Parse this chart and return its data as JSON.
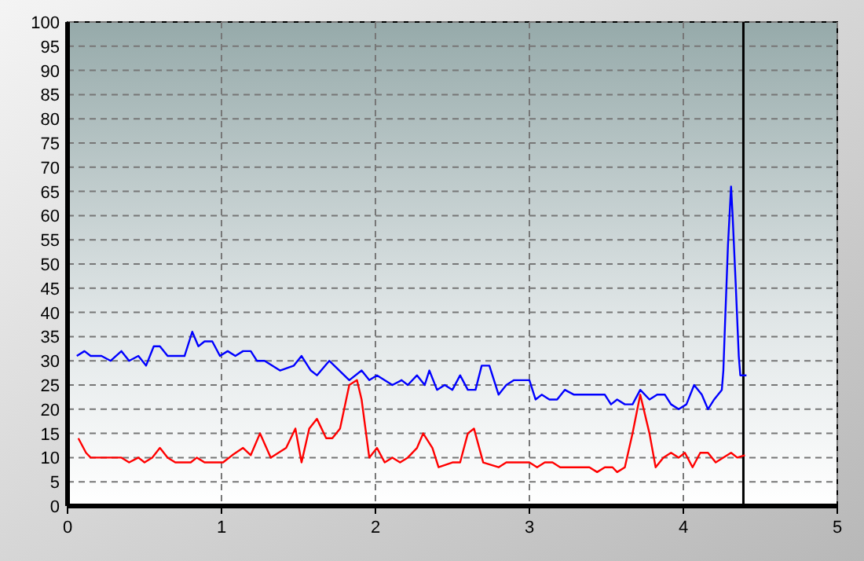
{
  "chart_data": {
    "type": "line",
    "xlim": [
      0,
      5
    ],
    "xticks": [
      0,
      1,
      2,
      3,
      4,
      5
    ],
    "ylim": [
      0,
      100
    ],
    "yticks": [
      0,
      5,
      10,
      15,
      20,
      25,
      30,
      35,
      40,
      45,
      50,
      55,
      60,
      65,
      70,
      75,
      80,
      85,
      90,
      95,
      100
    ],
    "grid": true,
    "marker": "none",
    "line_style": "solid",
    "ref_lines": [
      {
        "axis": "x",
        "value": 4.39,
        "color": "#000000"
      }
    ],
    "series": [
      {
        "color": "#0000ff",
        "x": [
          0.06,
          0.11,
          0.15,
          0.22,
          0.28,
          0.35,
          0.4,
          0.46,
          0.51,
          0.56,
          0.6,
          0.65,
          0.76,
          0.81,
          0.85,
          0.89,
          0.94,
          0.99,
          1.04,
          1.09,
          1.14,
          1.19,
          1.23,
          1.28,
          1.38,
          1.47,
          1.52,
          1.58,
          1.62,
          1.7,
          1.83,
          1.91,
          1.96,
          2.01,
          2.11,
          2.17,
          2.21,
          2.27,
          2.32,
          2.35,
          2.4,
          2.45,
          2.5,
          2.55,
          2.6,
          2.65,
          2.69,
          2.74,
          2.8,
          2.85,
          2.9,
          3.0,
          3.04,
          3.08,
          3.13,
          3.18,
          3.23,
          3.29,
          3.42,
          3.49,
          3.53,
          3.57,
          3.62,
          3.67,
          3.72,
          3.78,
          3.83,
          3.88,
          3.92,
          3.97,
          4.02,
          4.07,
          4.12,
          4.16,
          4.2,
          4.25,
          4.26,
          4.27,
          4.29,
          4.31,
          4.32,
          4.34,
          4.36,
          4.37,
          4.41
        ],
        "values": [
          31,
          32,
          31,
          31,
          30,
          32,
          30,
          31,
          29,
          33,
          33,
          31,
          31,
          36,
          33,
          34,
          34,
          31,
          32,
          31,
          32,
          32,
          30,
          30,
          28,
          29,
          31,
          28,
          27,
          30,
          26,
          28,
          26,
          27,
          25,
          26,
          25,
          27,
          25,
          28,
          24,
          25,
          24,
          27,
          24,
          24,
          29,
          29,
          23,
          25,
          26,
          26,
          22,
          23,
          22,
          22,
          24,
          23,
          23,
          23,
          21,
          22,
          21,
          21,
          24,
          22,
          23,
          23,
          21,
          20,
          21,
          25,
          23,
          20,
          22,
          24,
          28,
          37,
          54,
          66,
          60,
          46,
          31,
          27,
          27
        ]
      },
      {
        "color": "#ff0000",
        "x": [
          0.07,
          0.12,
          0.15,
          0.35,
          0.4,
          0.46,
          0.5,
          0.55,
          0.6,
          0.65,
          0.7,
          0.8,
          0.84,
          0.89,
          1.01,
          1.07,
          1.14,
          1.19,
          1.25,
          1.32,
          1.42,
          1.48,
          1.52,
          1.57,
          1.62,
          1.68,
          1.72,
          1.77,
          1.83,
          1.88,
          1.91,
          1.96,
          2.01,
          2.06,
          2.11,
          2.16,
          2.21,
          2.27,
          2.31,
          2.37,
          2.41,
          2.5,
          2.55,
          2.6,
          2.64,
          2.7,
          2.8,
          2.85,
          3.0,
          3.05,
          3.1,
          3.15,
          3.2,
          3.39,
          3.44,
          3.49,
          3.54,
          3.57,
          3.62,
          3.67,
          3.72,
          3.78,
          3.82,
          3.87,
          3.92,
          3.97,
          4.01,
          4.06,
          4.11,
          4.16,
          4.21,
          4.31,
          4.35,
          4.4
        ],
        "values": [
          14,
          11,
          10,
          10,
          9,
          10,
          9,
          10,
          12,
          10,
          9,
          9,
          10,
          9,
          9,
          10.5,
          12,
          10.5,
          15,
          10,
          12,
          16,
          9,
          16,
          18,
          14,
          14,
          16,
          25,
          26,
          22,
          10,
          12,
          9,
          10,
          9,
          10,
          12,
          15,
          12,
          8,
          9,
          9,
          15,
          16,
          9,
          8,
          9,
          9,
          8,
          9,
          9,
          8,
          8,
          7,
          8,
          8,
          7,
          8,
          15,
          23,
          15,
          8,
          10,
          11,
          10,
          11,
          8,
          11,
          11,
          9,
          11,
          10,
          10.5
        ]
      }
    ]
  }
}
